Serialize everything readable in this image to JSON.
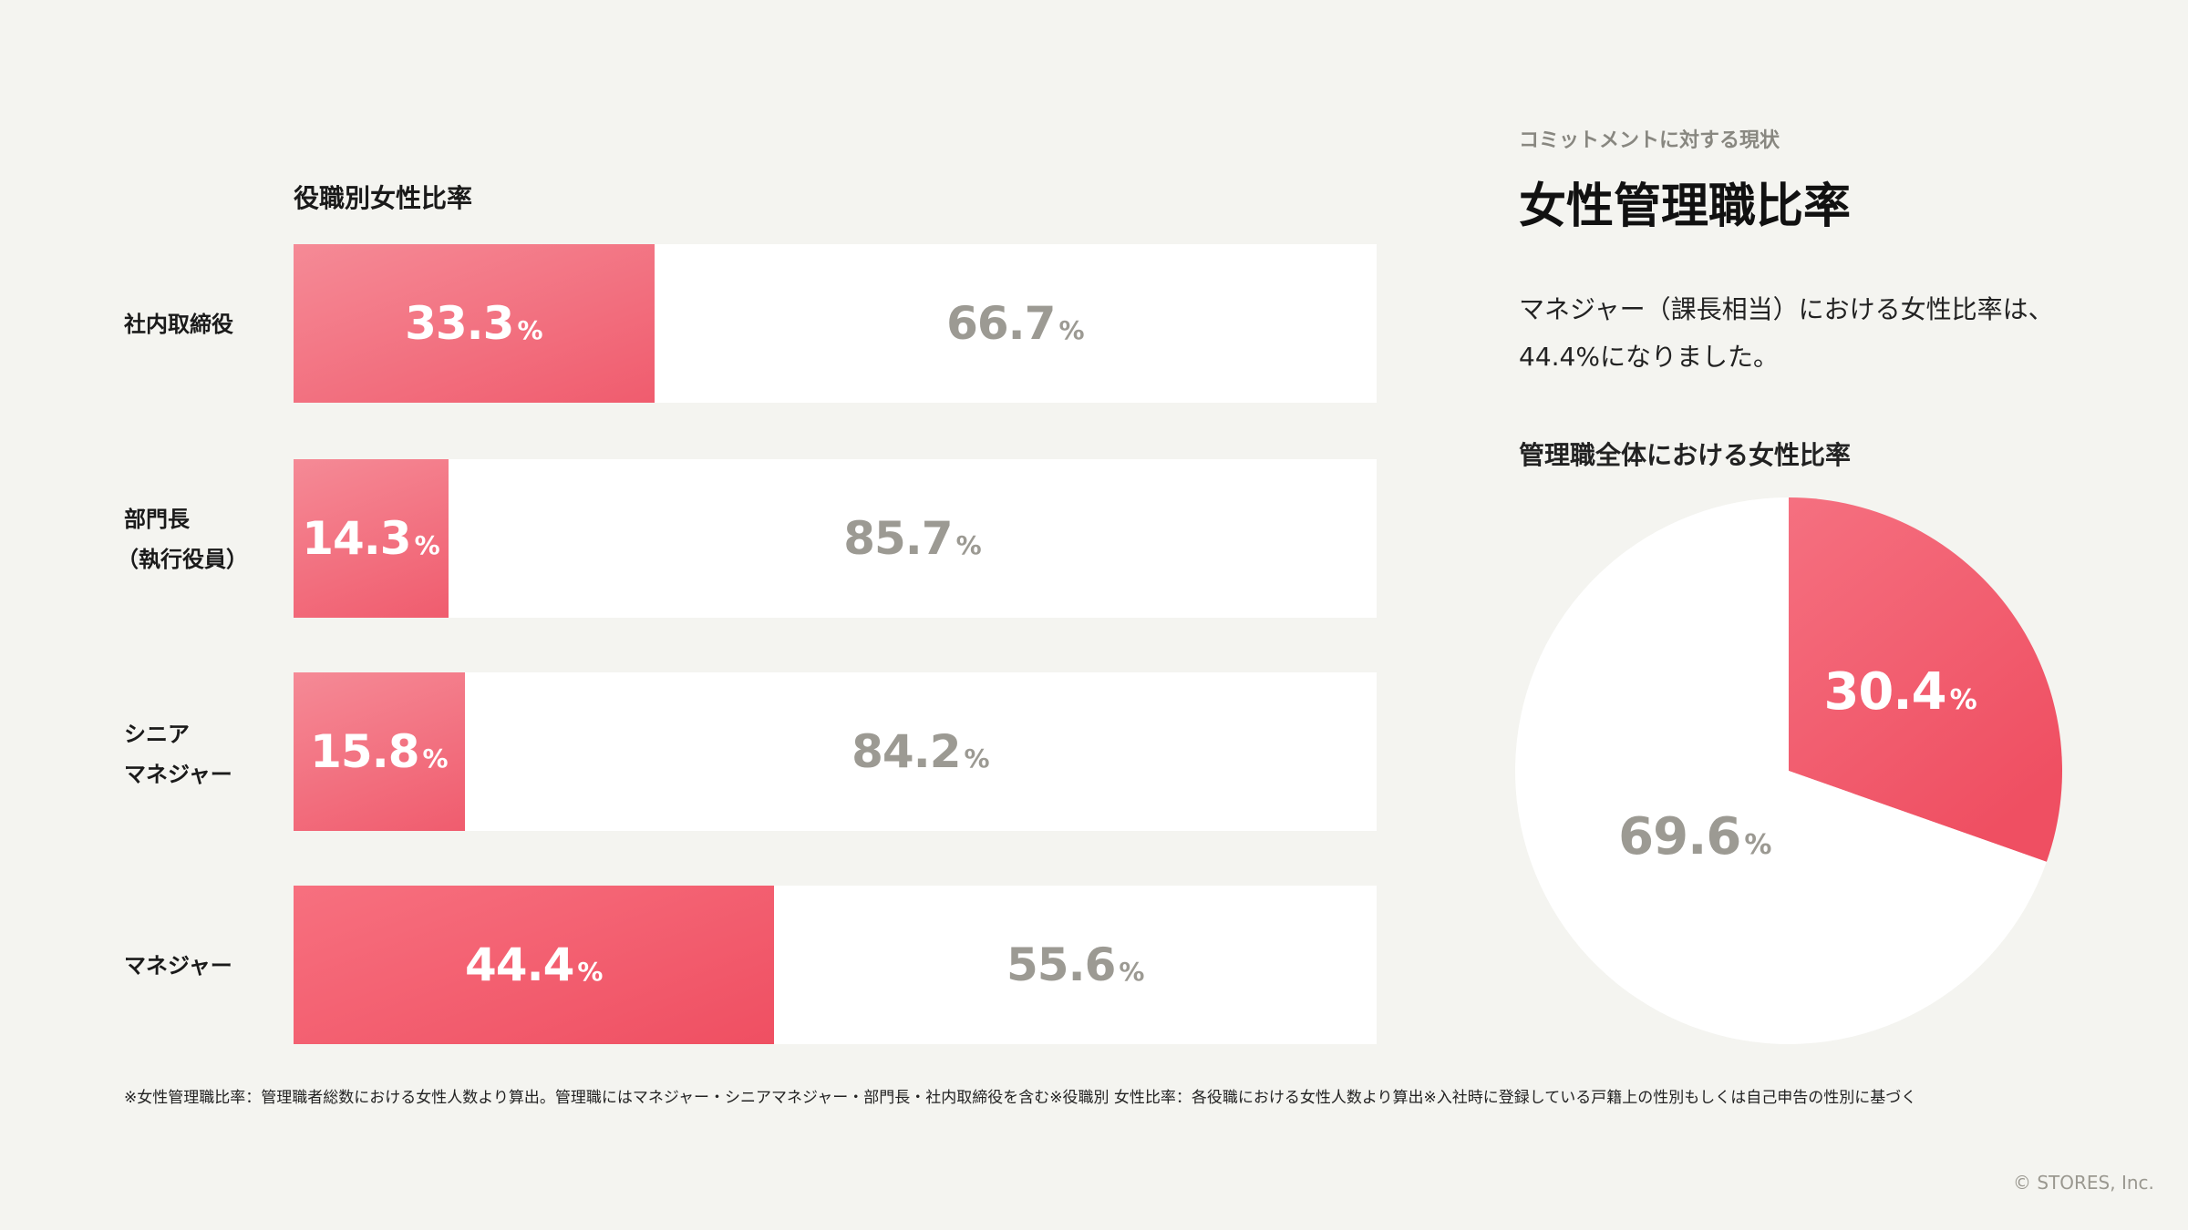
{
  "header": {
    "subtitle": "コミットメントに対する現状",
    "title": "女性管理職比率",
    "description_line1": "マネジャー（課長相当）における女性比率は、",
    "description_line2": "44.4%になりました。"
  },
  "chart_data": [
    {
      "type": "bar",
      "orientation": "horizontal-stacked-100",
      "title": "役職別女性比率",
      "categories": [
        "社内取締役",
        "部門長（執行役員）",
        "シニアマネジャー",
        "マネジャー"
      ],
      "label_lines": [
        [
          "社内取締役"
        ],
        [
          "部門長",
          "（執行役員）"
        ],
        [
          "シニア",
          "マネジャー"
        ],
        [
          "マネジャー"
        ]
      ],
      "series": [
        {
          "values": [
            33.3,
            14.3,
            15.8,
            44.4
          ],
          "color": "#f05c6e"
        },
        {
          "values": [
            66.7,
            85.7,
            84.2,
            55.6
          ],
          "color": "#ffffff"
        }
      ],
      "unit": "%",
      "xlim": [
        0,
        100
      ]
    },
    {
      "type": "pie",
      "title": "管理職全体における女性比率",
      "slices": [
        {
          "value": 30.4,
          "color": "#f05c6e"
        },
        {
          "value": 69.6,
          "color": "#ffffff"
        }
      ],
      "unit": "%"
    }
  ],
  "footnote": "※女性管理職比率：管理職者総数における女性人数より算出。管理職にはマネジャー・シニアマネジャー・部門長・社内取締役を含む※役職別 女性比率：各役職における女性人数より算出※入社時に登録している戸籍上の性別もしくは自己申告の性別に基づく",
  "copyright": "© STORES, Inc."
}
